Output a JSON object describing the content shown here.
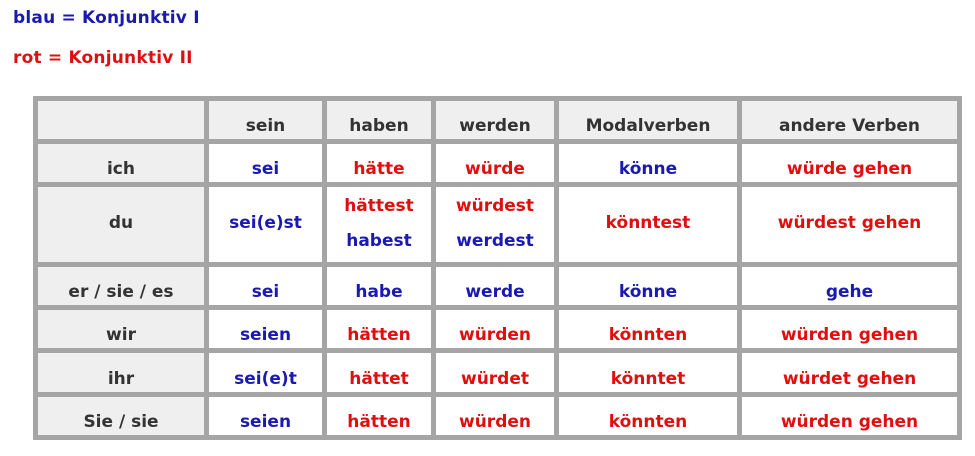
{
  "legend": {
    "blue": "blau = Konjunktiv I",
    "red": "rot = Konjunktiv II"
  },
  "colors": {
    "blue": "#1a1ab0",
    "red": "#e00f0f",
    "border": "#a5a5a5",
    "header_bg": "#efefef"
  },
  "table": {
    "headers": [
      "sein",
      "haben",
      "werden",
      "Modalverben",
      "andere Verben"
    ],
    "rows": [
      {
        "label": "ich",
        "cells": [
          [
            {
              "t": "sei",
              "c": "b"
            }
          ],
          [
            {
              "t": "hätte",
              "c": "r"
            }
          ],
          [
            {
              "t": "würde",
              "c": "r"
            }
          ],
          [
            {
              "t": "könne",
              "c": "b"
            }
          ],
          [
            {
              "t": "würde gehen",
              "c": "r"
            }
          ]
        ]
      },
      {
        "label": "du",
        "cells": [
          [
            {
              "t": "sei(e)st",
              "c": "b"
            }
          ],
          [
            {
              "t": "hättest",
              "c": "r"
            },
            {
              "t": "habest",
              "c": "b"
            }
          ],
          [
            {
              "t": "würdest",
              "c": "r"
            },
            {
              "t": "werdest",
              "c": "b"
            }
          ],
          [
            {
              "t": "könntest",
              "c": "r"
            }
          ],
          [
            {
              "t": "würdest gehen",
              "c": "r"
            }
          ]
        ]
      },
      {
        "label": "er / sie / es",
        "cells": [
          [
            {
              "t": "sei",
              "c": "b"
            }
          ],
          [
            {
              "t": "habe",
              "c": "b"
            }
          ],
          [
            {
              "t": "werde",
              "c": "b"
            }
          ],
          [
            {
              "t": "könne",
              "c": "b"
            }
          ],
          [
            {
              "t": "gehe",
              "c": "b"
            }
          ]
        ]
      },
      {
        "label": "wir",
        "cells": [
          [
            {
              "t": "seien",
              "c": "b"
            }
          ],
          [
            {
              "t": "hätten",
              "c": "r"
            }
          ],
          [
            {
              "t": "würden",
              "c": "r"
            }
          ],
          [
            {
              "t": "könnten",
              "c": "r"
            }
          ],
          [
            {
              "t": "würden gehen",
              "c": "r"
            }
          ]
        ]
      },
      {
        "label": "ihr",
        "cells": [
          [
            {
              "t": "sei(e)t",
              "c": "b"
            }
          ],
          [
            {
              "t": "hättet",
              "c": "r"
            }
          ],
          [
            {
              "t": "würdet",
              "c": "r"
            }
          ],
          [
            {
              "t": "könntet",
              "c": "r"
            }
          ],
          [
            {
              "t": "würdet gehen",
              "c": "r"
            }
          ]
        ]
      },
      {
        "label": "Sie / sie",
        "cells": [
          [
            {
              "t": "seien",
              "c": "b"
            }
          ],
          [
            {
              "t": "hätten",
              "c": "r"
            }
          ],
          [
            {
              "t": "würden",
              "c": "r"
            }
          ],
          [
            {
              "t": "könnten",
              "c": "r"
            }
          ],
          [
            {
              "t": "würden gehen",
              "c": "r"
            }
          ]
        ]
      }
    ]
  }
}
